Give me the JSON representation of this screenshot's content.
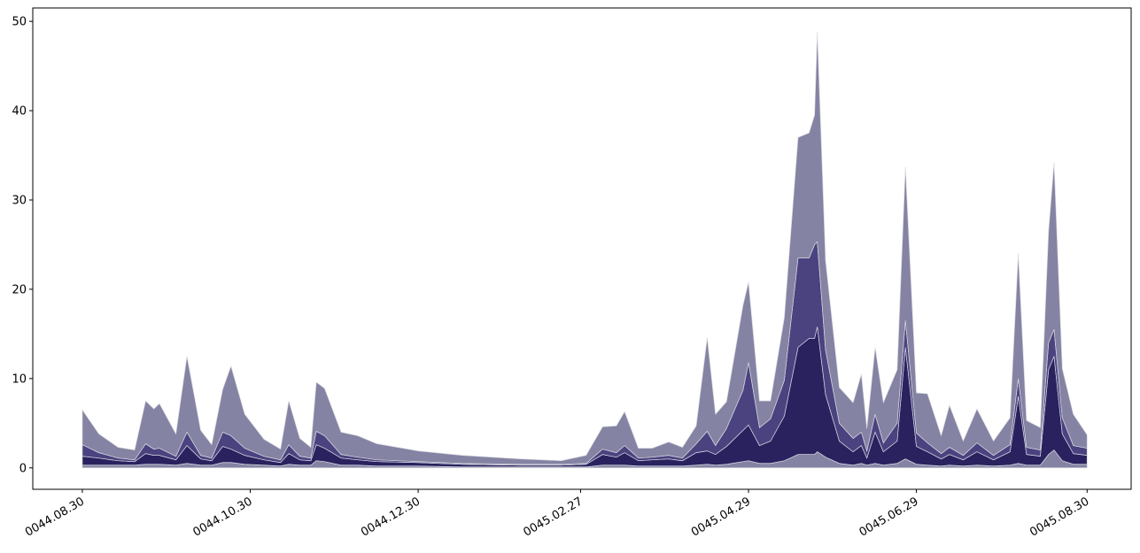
{
  "chart_data": {
    "type": "stackedarea",
    "x": [
      "0044.08.30",
      "0044.09.05",
      "0044.09.12",
      "0044.09.18",
      "0044.09.22",
      "0044.09.25",
      "0044.09.27",
      "0044.10.03",
      "0044.10.07",
      "0044.10.12",
      "0044.10.16",
      "0044.10.20",
      "0044.10.23",
      "0044.10.28",
      "0044.11.04",
      "0044.11.10",
      "0044.11.13",
      "0044.11.17",
      "0044.11.21",
      "0044.11.23",
      "0044.11.26",
      "0044.12.02",
      "0044.12.08",
      "0044.12.15",
      "0044.12.30",
      "0045.01.15",
      "0045.02.05",
      "0045.02.20",
      "0045.03.01",
      "0045.03.07",
      "0045.03.12",
      "0045.03.15",
      "0045.03.20",
      "0045.03.25",
      "0045.03.31",
      "0045.04.05",
      "0045.04.10",
      "0045.04.14",
      "0045.04.17",
      "0045.04.21",
      "0045.04.27",
      "0045.04.29",
      "0045.05.03",
      "0045.05.07",
      "0045.05.12",
      "0045.05.17",
      "0045.05.21",
      "0045.05.23",
      "0045.05.24",
      "0045.05.27",
      "0045.06.01",
      "0045.06.06",
      "0045.06.09",
      "0045.06.11",
      "0045.06.14",
      "0045.06.17",
      "0045.06.22",
      "0045.06.25",
      "0045.06.29",
      "0045.07.03",
      "0045.07.08",
      "0045.07.11",
      "0045.07.16",
      "0045.07.21",
      "0045.07.27",
      "0045.08.02",
      "0045.08.05",
      "0045.08.08",
      "0045.08.13",
      "0045.08.16",
      "0045.08.18",
      "0045.08.21",
      "0045.08.25",
      "0045.08.30"
    ],
    "series": [
      {
        "color": "#8583a3",
        "values": [
          0.3,
          0.3,
          0.3,
          0.3,
          0.4,
          0.4,
          0.4,
          0.3,
          0.5,
          0.3,
          0.3,
          0.6,
          0.6,
          0.4,
          0.3,
          0.2,
          0.4,
          0.3,
          0.3,
          0.8,
          0.7,
          0.3,
          0.3,
          0.2,
          0.2,
          0.1,
          0.1,
          0.1,
          0.1,
          0.3,
          0.3,
          0.3,
          0.2,
          0.2,
          0.2,
          0.2,
          0.3,
          0.4,
          0.3,
          0.4,
          0.7,
          0.8,
          0.5,
          0.5,
          0.8,
          1.5,
          1.5,
          1.5,
          1.8,
          1.2,
          0.5,
          0.3,
          0.5,
          0.3,
          0.5,
          0.3,
          0.5,
          1.0,
          0.4,
          0.3,
          0.2,
          0.3,
          0.2,
          0.3,
          0.2,
          0.3,
          0.5,
          0.3,
          0.3,
          1.5,
          2.0,
          0.8,
          0.4,
          0.4
        ]
      },
      {
        "color": "#29225f",
        "values": [
          1.0,
          0.8,
          0.5,
          0.4,
          1.2,
          1.0,
          1.0,
          0.6,
          2.0,
          0.7,
          0.5,
          1.8,
          1.5,
          1.0,
          0.6,
          0.4,
          1.2,
          0.6,
          0.5,
          1.8,
          1.5,
          0.8,
          0.6,
          0.5,
          0.4,
          0.3,
          0.2,
          0.2,
          0.3,
          1.2,
          0.9,
          1.4,
          0.6,
          0.7,
          0.8,
          0.6,
          1.4,
          1.5,
          1.2,
          2.0,
          3.5,
          4.0,
          2.0,
          2.5,
          5.0,
          12,
          13,
          13,
          14,
          7,
          2.5,
          1.5,
          2.0,
          0.8,
          3.5,
          1.5,
          2.5,
          12.5,
          2.0,
          1.5,
          0.8,
          1.2,
          0.7,
          1.5,
          0.7,
          1.5,
          7.5,
          1.2,
          1.0,
          9.5,
          10.5,
          3.0,
          1.2,
          1.0
        ]
      },
      {
        "color": "#4b4280",
        "values": [
          1.3,
          0.6,
          0.3,
          0.2,
          1.1,
          0.7,
          0.8,
          0.4,
          1.5,
          0.4,
          0.3,
          1.6,
          1.5,
          0.8,
          0.4,
          0.3,
          1.0,
          0.4,
          0.3,
          1.5,
          1.4,
          0.4,
          0.3,
          0.2,
          0.1,
          0.1,
          0.1,
          0.1,
          0.1,
          0.6,
          0.5,
          0.8,
          0.3,
          0.3,
          0.4,
          0.3,
          1.0,
          2.2,
          1.0,
          2.0,
          4.5,
          7.0,
          2.0,
          2.5,
          4.0,
          10,
          9,
          10.5,
          9.5,
          5,
          2.0,
          1.5,
          1.5,
          0.8,
          2.0,
          1.0,
          2.0,
          3.0,
          1.5,
          1.0,
          0.6,
          0.8,
          0.5,
          1.0,
          0.5,
          0.8,
          2.0,
          0.8,
          0.7,
          3.0,
          3.0,
          1.8,
          0.9,
          0.8
        ]
      },
      {
        "color": "#8583a3",
        "values": [
          3.9,
          2.1,
          1.2,
          1.1,
          4.8,
          4.5,
          5.0,
          2.5,
          8.5,
          2.8,
          1.5,
          4.8,
          7.8,
          3.8,
          1.9,
          1.2,
          4.9,
          2.0,
          1.2,
          5.5,
          5.3,
          2.5,
          2.4,
          1.8,
          1.2,
          0.9,
          0.6,
          0.4,
          0.9,
          2.5,
          3.0,
          3.8,
          1.1,
          1.0,
          1.5,
          1.2,
          2.0,
          10.5,
          3.5,
          3.0,
          9.5,
          9.0,
          3.0,
          2.0,
          7.0,
          13.5,
          14,
          14.5,
          23.5,
          10,
          4.0,
          4.0,
          6.5,
          2.5,
          7.5,
          4.5,
          6.0,
          17.2,
          4.5,
          5.5,
          2.0,
          4.7,
          1.6,
          3.8,
          1.6,
          3.0,
          14.0,
          3.0,
          2.5,
          12.5,
          18.7,
          5.5,
          3.5,
          1.5
        ]
      }
    ],
    "xlim": [
      "0044.08.12",
      "0045.09.15"
    ],
    "xticks": [
      "0044.08.30",
      "0044.10.30",
      "0044.12.30",
      "0045.02.27",
      "0045.04.29",
      "0045.06.29",
      "0045.08.30"
    ],
    "ylim": [
      -2.4,
      51.5
    ],
    "yticks": [
      0,
      10,
      20,
      30,
      40,
      50
    ]
  }
}
